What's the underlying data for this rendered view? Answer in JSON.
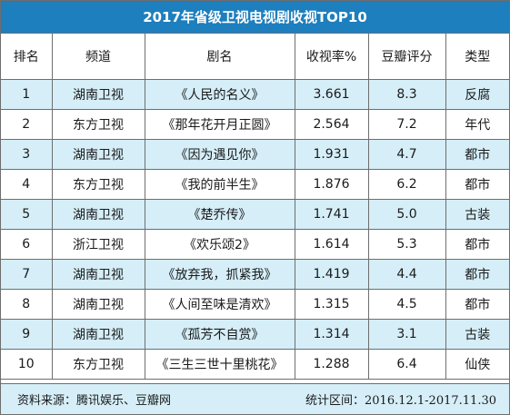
{
  "chart_data": {
    "type": "table",
    "title": "2017年省级卫视电视剧收视TOP10",
    "columns": [
      "排名",
      "频道",
      "剧名",
      "收视率%",
      "豆瓣评分",
      "类型"
    ],
    "rows": [
      [
        "1",
        "湖南卫视",
        "《人民的名义》",
        "3.661",
        "8.3",
        "反腐"
      ],
      [
        "2",
        "东方卫视",
        "《那年花开月正圆》",
        "2.564",
        "7.2",
        "年代"
      ],
      [
        "3",
        "湖南卫视",
        "《因为遇见你》",
        "1.931",
        "4.7",
        "都市"
      ],
      [
        "4",
        "东方卫视",
        "《我的前半生》",
        "1.876",
        "6.2",
        "都市"
      ],
      [
        "5",
        "湖南卫视",
        "《楚乔传》",
        "1.741",
        "5.0",
        "古装"
      ],
      [
        "6",
        "浙江卫视",
        "《欢乐颂2》",
        "1.614",
        "5.3",
        "都市"
      ],
      [
        "7",
        "湖南卫视",
        "《放弃我，抓紧我》",
        "1.419",
        "4.4",
        "都市"
      ],
      [
        "8",
        "湖南卫视",
        "《人间至味是清欢》",
        "1.315",
        "4.5",
        "都市"
      ],
      [
        "9",
        "湖南卫视",
        "《孤芳不自赏》",
        "1.314",
        "3.1",
        "古装"
      ],
      [
        "10",
        "东方卫视",
        "《三生三世十里桃花》",
        "1.288",
        "6.4",
        "仙侠"
      ]
    ],
    "footer": {
      "source": "资料来源：腾讯娱乐、豆瓣网",
      "period": "统计区间：2016.12.1-2017.11.30"
    }
  },
  "colors": {
    "title_bg": "#1d7fbd",
    "title_text": "#ffffff",
    "alt_row_bg": "#d5eef8",
    "border": "#6e6e6e"
  }
}
